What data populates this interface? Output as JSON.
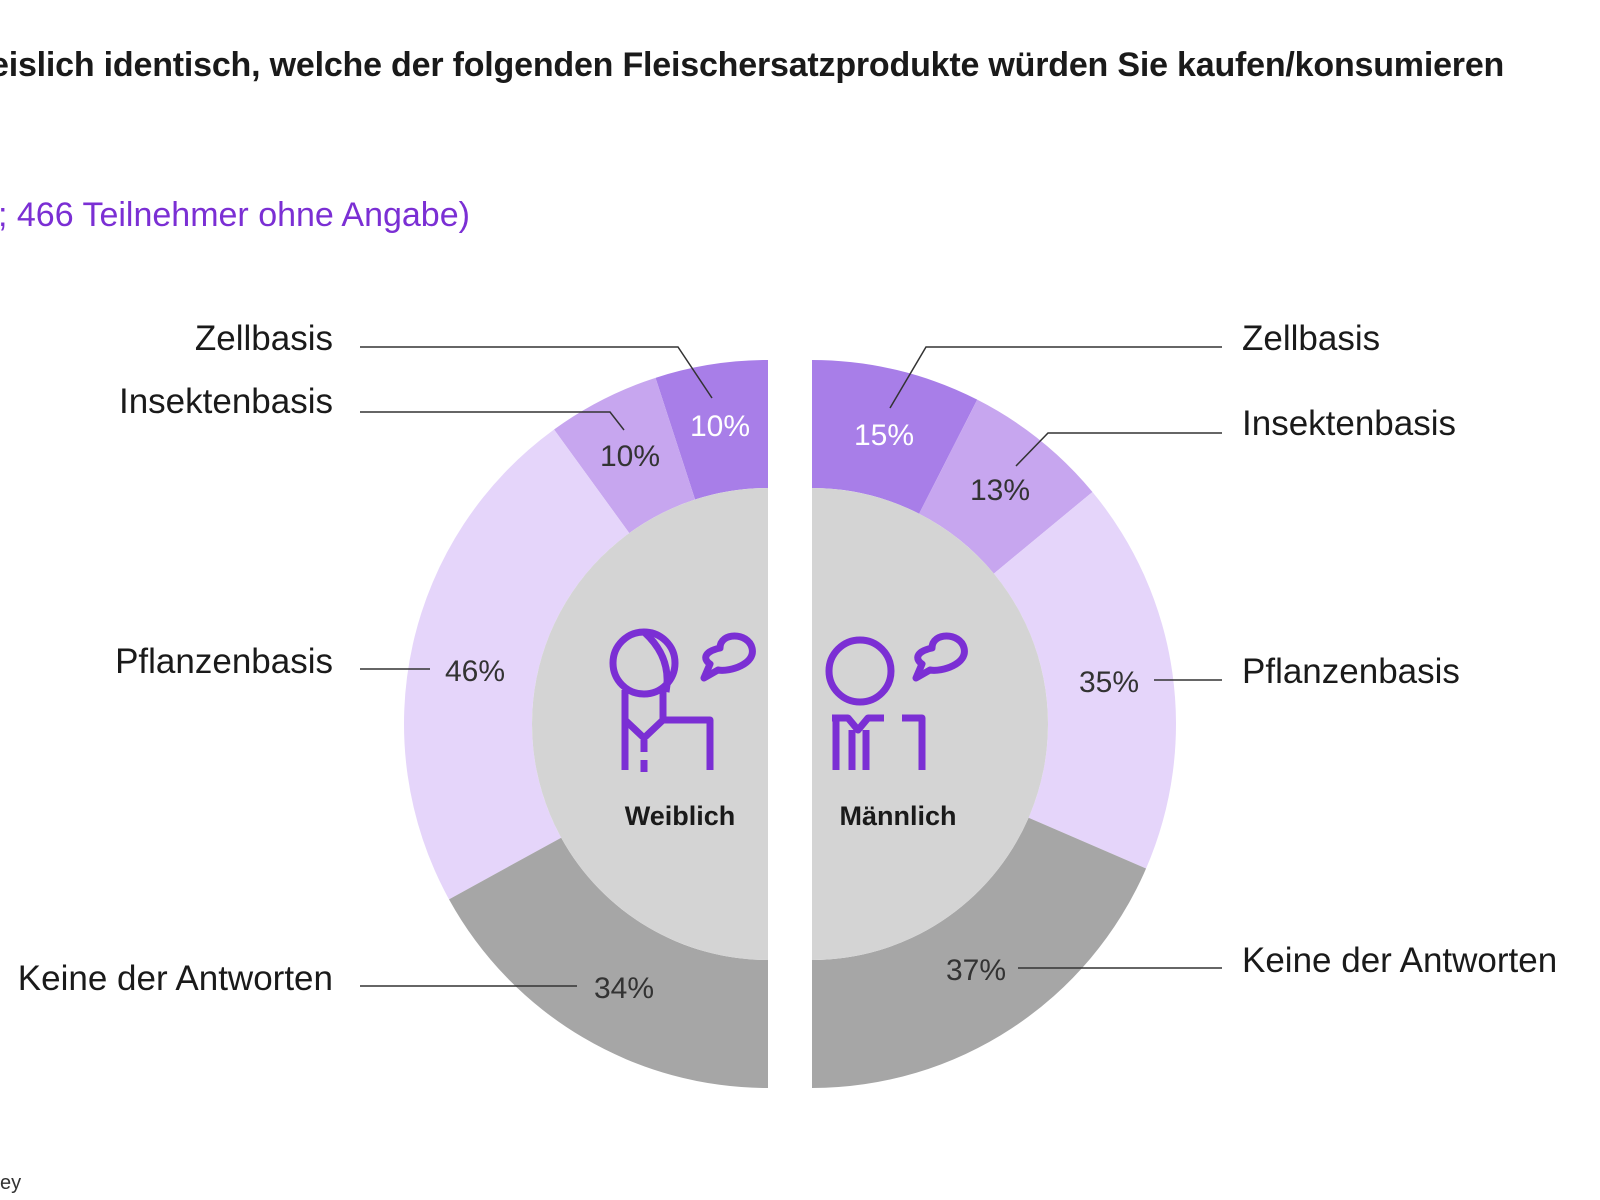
{
  "chart_data": {
    "type": "pie",
    "title": "eislich identisch, welche der folgenden Fleischersatzprodukte würden Sie kaufen/konsumieren",
    "subtitle": "; 466 Teilnehmer ohne Angabe)",
    "source": "ey",
    "categories": [
      "Zellbasis",
      "Insektenbasis",
      "Pflanzenbasis",
      "Keine der Antworten"
    ],
    "colors": [
      "#a87ee8",
      "#c7a6ef",
      "#e5d5fa",
      "#a6a6a6"
    ],
    "series": [
      {
        "name": "Weiblich",
        "values": [
          10,
          10,
          46,
          34
        ],
        "labels": [
          "10%",
          "10%",
          "46%",
          "34%"
        ]
      },
      {
        "name": "Männlich",
        "values": [
          15,
          13,
          35,
          37
        ],
        "labels": [
          "15%",
          "13%",
          "35%",
          "37%"
        ]
      }
    ]
  },
  "theme": {
    "accent": "#7b2fd4",
    "center_fill": "#d4d4d4"
  },
  "icons": {
    "female": "woman-speaking-icon",
    "male": "man-speaking-icon"
  }
}
